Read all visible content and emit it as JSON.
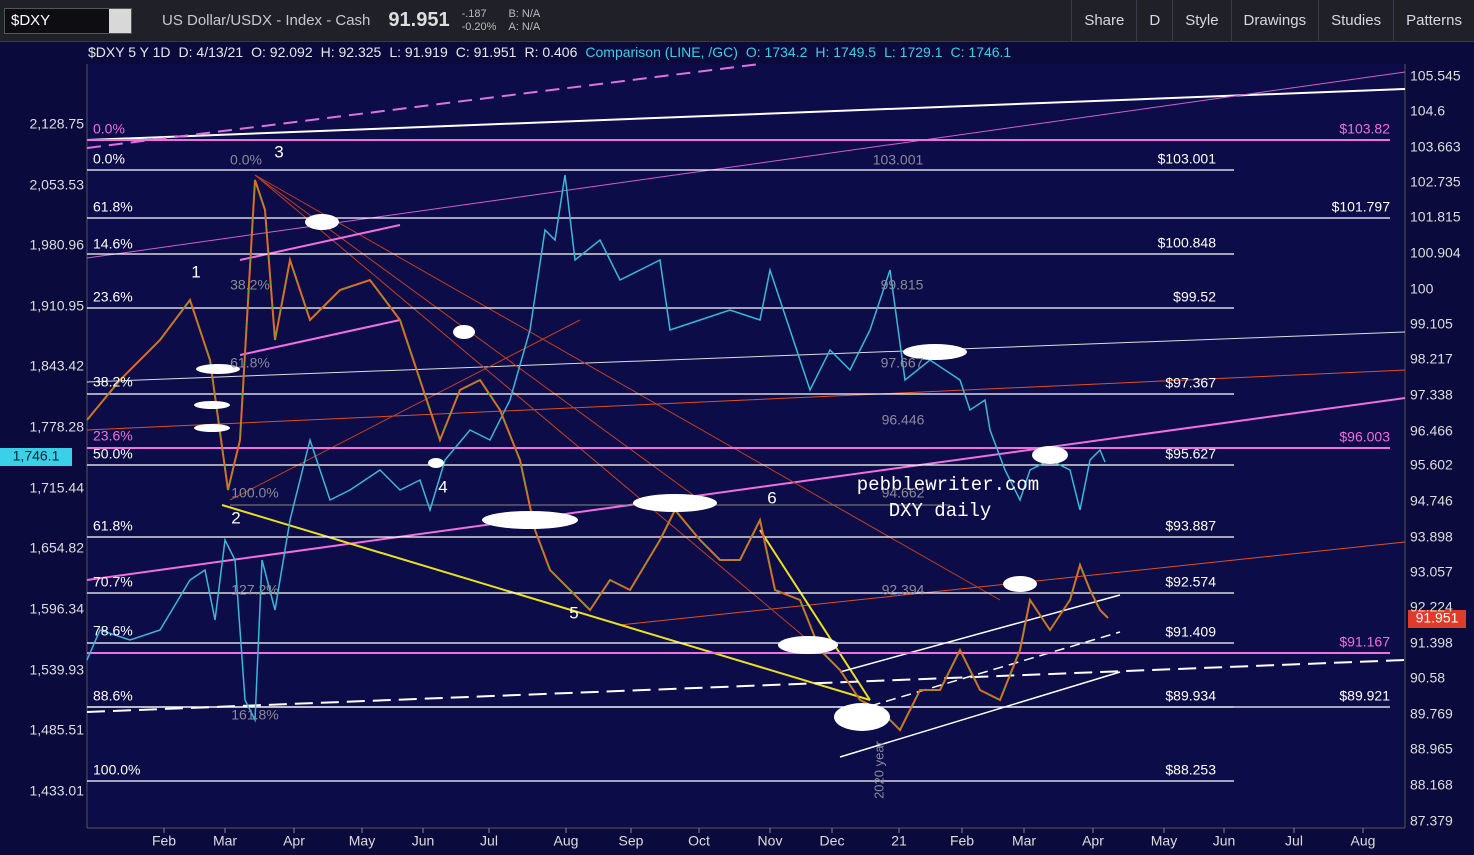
{
  "toolbar": {
    "symbol": "$DXY",
    "description": "US Dollar/USDX - Index - Cash",
    "last": "91.951",
    "change": "-.187",
    "change_pct": "-0.20%",
    "bid": "B: N/A",
    "ask": "A: N/A",
    "buttons": [
      "Share",
      "D",
      "Style",
      "Drawings",
      "Studies",
      "Patterns"
    ]
  },
  "info_bar": [
    "$DXY 5 Y 1D",
    "D: 4/13/21",
    "O: 92.092",
    "H: 92.325",
    "L: 91.919",
    "C: 91.951",
    "R: 0.406"
  ],
  "comparison_bar": [
    "Comparison (LINE, /GC)",
    "O: 1734.2",
    "H: 1749.5",
    "L: 1729.1",
    "C: 1746.1"
  ],
  "left_axis": {
    "labels": [
      "2,128.75",
      "2,053.53",
      "1,980.96",
      "1,910.95",
      "1,843.42",
      "1,778.28",
      "1,715.44",
      "1,654.82",
      "1,596.34",
      "1,539.93",
      "1,485.51",
      "1,433.01"
    ],
    "current": "1,746.1"
  },
  "right_axis": {
    "labels": [
      "105.545",
      "104.6",
      "103.663",
      "102.735",
      "101.815",
      "100.904",
      "100",
      "99.105",
      "98.217",
      "97.338",
      "96.466",
      "95.602",
      "94.746",
      "93.898",
      "93.057",
      "92.224",
      "91.398",
      "90.58",
      "89.769",
      "88.965",
      "88.168",
      "87.379"
    ],
    "current": "91.951"
  },
  "x_axis": [
    "Feb",
    "Mar",
    "Apr",
    "May",
    "Jun",
    "Jul",
    "Aug",
    "Sep",
    "Oct",
    "Nov",
    "Dec",
    "21",
    "Feb",
    "Mar",
    "Apr",
    "May",
    "Jun",
    "Jul",
    "Aug"
  ],
  "fib_left": [
    "0.0%",
    "0.0%",
    "61.8%",
    "14.6%",
    "23.6%",
    "38.2%",
    "23.6%",
    "50.0%",
    "61.8%",
    "70.7%",
    "78.6%",
    "88.6%",
    "100.0%"
  ],
  "fib_right": [
    "$103.82",
    "$103.001",
    "$101.797",
    "$100.848",
    "$99.52",
    "$97.367",
    "$96.003",
    "$95.627",
    "$93.887",
    "$92.574",
    "$91.409",
    "$91.167",
    "$89.934",
    "$89.921",
    "$88.253"
  ],
  "wave_labels": [
    "1",
    "2",
    "3",
    "4",
    "5",
    "6"
  ],
  "watermark": [
    "pebblewriter.com",
    "DXY daily"
  ],
  "study_labels": [
    "0.0%",
    "103.001",
    "38.2%",
    "99.815",
    "61.8%",
    "97.667",
    "96.446",
    "100.0%",
    "94.662",
    "127.2%",
    "92.394",
    "161.8%",
    "2020 year"
  ]
}
